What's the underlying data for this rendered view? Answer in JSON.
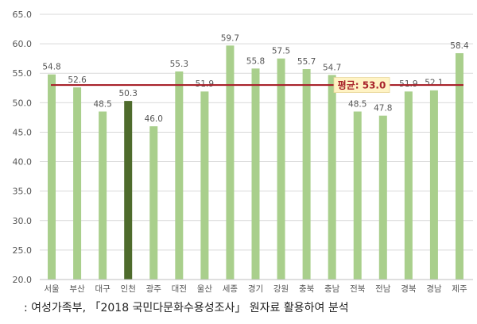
{
  "chart_data": {
    "type": "bar",
    "categories": [
      "서울",
      "부산",
      "대구",
      "인천",
      "광주",
      "대전",
      "울산",
      "세종",
      "경기",
      "강원",
      "충북",
      "충남",
      "전북",
      "전남",
      "경북",
      "경남",
      "제주"
    ],
    "values": [
      54.8,
      52.6,
      48.5,
      50.3,
      46.0,
      55.3,
      51.9,
      59.7,
      55.8,
      57.5,
      55.7,
      54.7,
      48.5,
      47.8,
      51.9,
      52.1,
      58.4
    ],
    "value_labels": [
      "54.8",
      "52.6",
      "48.5",
      "50.3",
      "46.0",
      "55.3",
      "51.9",
      "59.7",
      "55.8",
      "57.5",
      "55.7",
      "54.7",
      "48.5",
      "47.8",
      "51.9",
      "52.1",
      "58.4"
    ],
    "y_ticks": [
      "20.0",
      "25.0",
      "30.0",
      "35.0",
      "40.0",
      "45.0",
      "50.0",
      "55.0",
      "60.0",
      "65.0"
    ],
    "ylim": [
      20,
      65
    ],
    "highlight_category": "인천",
    "average": {
      "value": 53.0,
      "label": "평균: 53.0"
    },
    "grid": true,
    "colors": {
      "bar": "#a9cf8c",
      "bar_highlight": "#4e6b2c",
      "average_line": "#a8232b",
      "grid": "#d9d9d9",
      "axis_text": "#555555",
      "label_box": "#fff3c4"
    },
    "title": "",
    "xlabel": "",
    "ylabel": ""
  },
  "source_note": ": 여성가족부, 「2018 국민다문화수용성조사」 원자료 활용하여 분석"
}
